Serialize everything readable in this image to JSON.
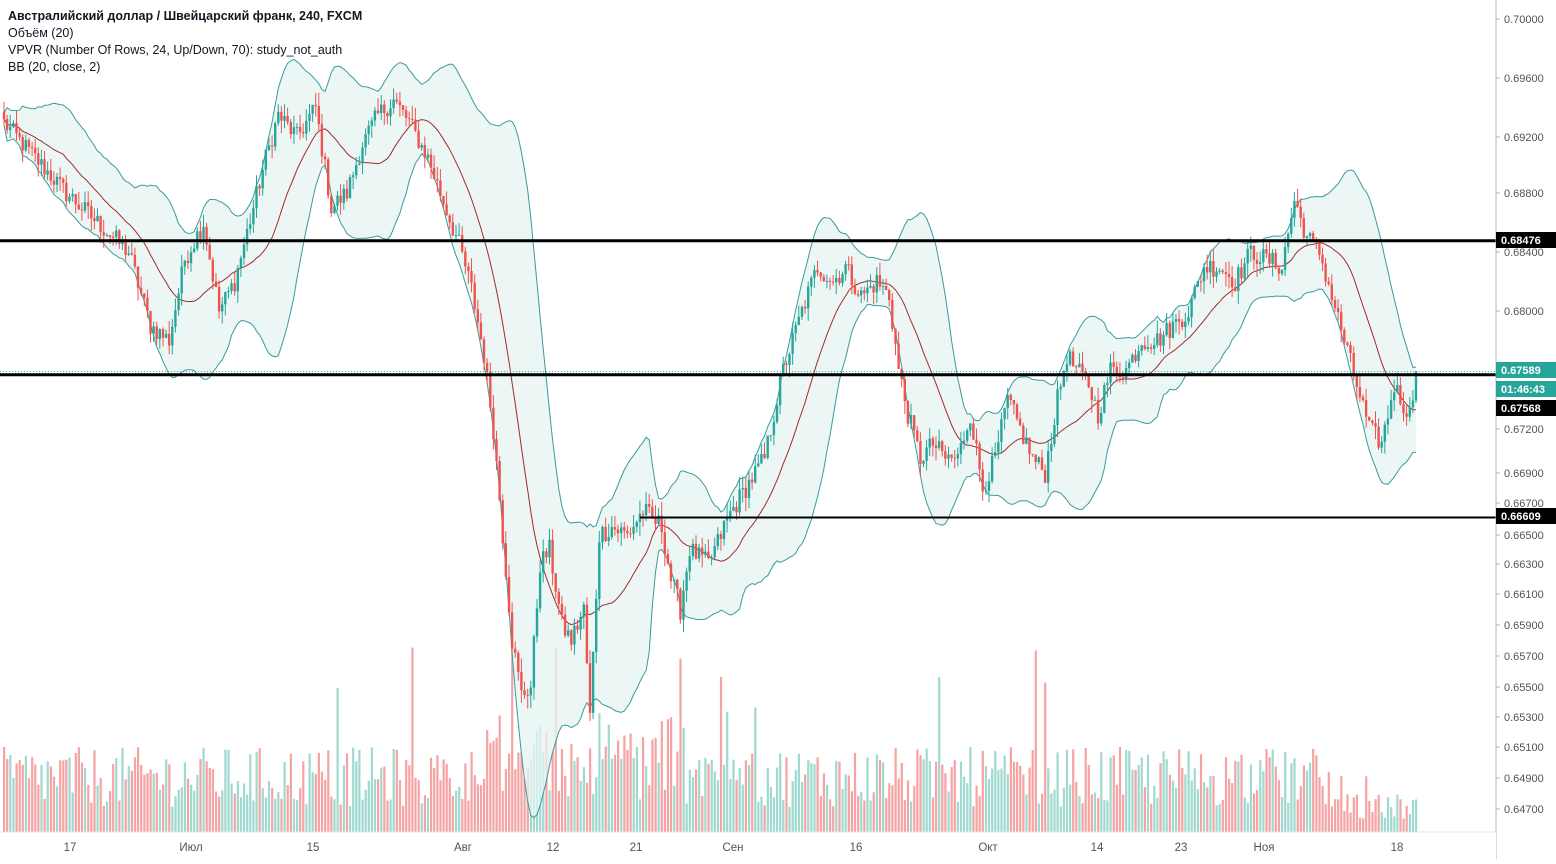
{
  "header": {
    "title": "Австралийский доллар / Швейцарский франк, 240, FXCM",
    "indicators": [
      "Объём (20)",
      "VPVR (Number Of Rows, 24, Up/Down, 70): study_not_auth",
      "BB (20, close, 2)"
    ]
  },
  "colors": {
    "up": "#26a69a",
    "down": "#ef5350",
    "vol_up": "#9fd9cf",
    "vol_down": "#f5a3a3",
    "bb_band": "#3a9b9a",
    "bb_fill": "#e6f4f2",
    "bb_basis": "#a52a2a",
    "hline": "#000000"
  },
  "price_labels": {
    "last": "0.67589",
    "countdown": "01:46:43",
    "line_upper": "0.68476",
    "line_middle": "0.67568",
    "line_lower": "0.66609"
  },
  "chart_data": {
    "type": "candlestick",
    "symbol": "AUDCHF",
    "timeframe": "240",
    "y_axis": {
      "ticks": [
        "0.70000",
        "0.69600",
        "0.69200",
        "0.68800",
        "0.68400",
        "0.68000",
        "0.67600",
        "0.67200",
        "0.66900",
        "0.66700",
        "0.66500",
        "0.66300",
        "0.66100",
        "0.65900",
        "0.65700",
        "0.65500",
        "0.65300",
        "0.65100",
        "0.64900",
        "0.64700"
      ],
      "range": [
        0.6463,
        0.7008
      ]
    },
    "x_axis": {
      "ticks": [
        "17",
        "Июл",
        "15",
        "Авг",
        "12",
        "21",
        "Сен",
        "16",
        "Окт",
        "14",
        "23",
        "Ноя",
        "18"
      ]
    },
    "horizontal_lines": [
      0.68476,
      0.67568,
      0.66609
    ],
    "last_price": 0.67589,
    "close_path": [
      [
        0,
        0.693
      ],
      [
        10,
        0.6905
      ],
      [
        20,
        0.688
      ],
      [
        30,
        0.686
      ],
      [
        40,
        0.684
      ],
      [
        47,
        0.679
      ],
      [
        53,
        0.678
      ],
      [
        58,
        0.6835
      ],
      [
        64,
        0.686
      ],
      [
        69,
        0.68
      ],
      [
        74,
        0.682
      ],
      [
        80,
        0.687
      ],
      [
        84,
        0.6905
      ],
      [
        88,
        0.6935
      ],
      [
        94,
        0.692
      ],
      [
        100,
        0.694
      ],
      [
        105,
        0.687
      ],
      [
        110,
        0.688
      ],
      [
        115,
        0.6915
      ],
      [
        120,
        0.6935
      ],
      [
        125,
        0.6945
      ],
      [
        130,
        0.693
      ],
      [
        136,
        0.6905
      ],
      [
        140,
        0.688
      ],
      [
        146,
        0.6845
      ],
      [
        150,
        0.6815
      ],
      [
        154,
        0.677
      ],
      [
        157,
        0.672
      ],
      [
        160,
        0.665
      ],
      [
        163,
        0.658
      ],
      [
        166,
        0.6545
      ],
      [
        169,
        0.655
      ],
      [
        172,
        0.663
      ],
      [
        175,
        0.664
      ],
      [
        179,
        0.659
      ],
      [
        182,
        0.658
      ],
      [
        186,
        0.66
      ],
      [
        188,
        0.653
      ],
      [
        191,
        0.665
      ],
      [
        195,
        0.6655
      ],
      [
        200,
        0.665
      ],
      [
        205,
        0.6665
      ],
      [
        208,
        0.666
      ],
      [
        211,
        0.6655
      ],
      [
        214,
        0.662
      ],
      [
        217,
        0.66
      ],
      [
        220,
        0.664
      ],
      [
        226,
        0.663
      ],
      [
        232,
        0.666
      ],
      [
        238,
        0.668
      ],
      [
        244,
        0.67
      ],
      [
        250,
        0.676
      ],
      [
        256,
        0.68
      ],
      [
        261,
        0.683
      ],
      [
        266,
        0.682
      ],
      [
        270,
        0.683
      ],
      [
        275,
        0.681
      ],
      [
        280,
        0.682
      ],
      [
        284,
        0.681
      ],
      [
        287,
        0.676
      ],
      [
        290,
        0.673
      ],
      [
        294,
        0.67
      ],
      [
        298,
        0.671
      ],
      [
        302,
        0.67
      ],
      [
        306,
        0.67
      ],
      [
        310,
        0.673
      ],
      [
        314,
        0.668
      ],
      [
        318,
        0.67
      ],
      [
        322,
        0.674
      ],
      [
        326,
        0.672
      ],
      [
        330,
        0.67
      ],
      [
        334,
        0.669
      ],
      [
        338,
        0.674
      ],
      [
        341,
        0.677
      ],
      [
        344,
        0.676
      ],
      [
        348,
        0.675
      ],
      [
        351,
        0.673
      ],
      [
        355,
        0.676
      ],
      [
        360,
        0.676
      ],
      [
        365,
        0.678
      ],
      [
        370,
        0.678
      ],
      [
        375,
        0.679
      ],
      [
        380,
        0.68
      ],
      [
        385,
        0.683
      ],
      [
        390,
        0.683
      ],
      [
        395,
        0.682
      ],
      [
        400,
        0.684
      ],
      [
        405,
        0.6835
      ],
      [
        410,
        0.683
      ],
      [
        414,
        0.6875
      ],
      [
        418,
        0.685
      ],
      [
        422,
        0.684
      ],
      [
        426,
        0.681
      ],
      [
        430,
        0.678
      ],
      [
        434,
        0.675
      ],
      [
        438,
        0.672
      ],
      [
        442,
        0.671
      ],
      [
        446,
        0.675
      ],
      [
        448,
        0.674
      ],
      [
        451,
        0.673
      ],
      [
        453,
        0.6758
      ]
    ]
  }
}
